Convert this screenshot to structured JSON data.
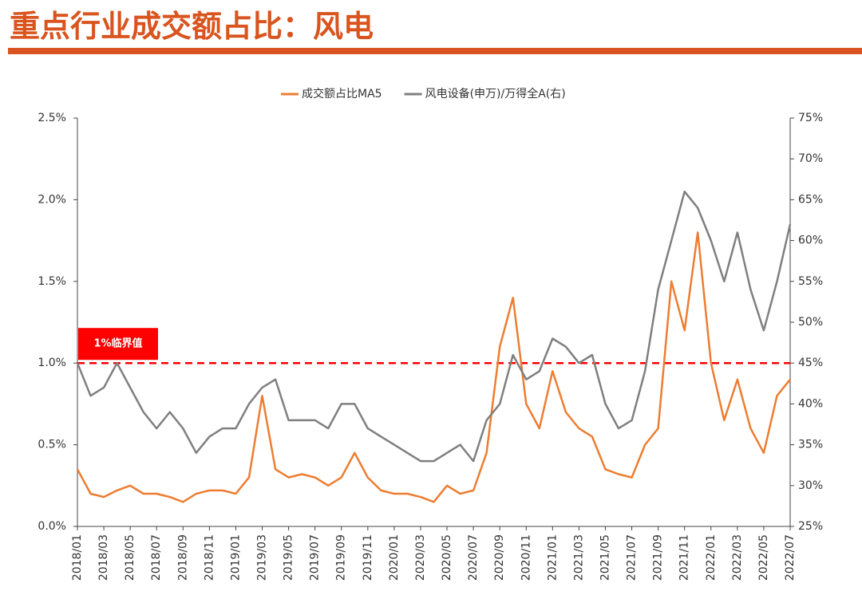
{
  "chart_data": {
    "type": "line",
    "title": "重点行业成交额占比：风电",
    "categories": [
      "2018/01",
      null,
      "2018/03",
      null,
      "2018/05",
      null,
      "2018/07",
      null,
      "2018/09",
      null,
      "2018/11",
      null,
      "2019/01",
      null,
      "2019/03",
      null,
      "2019/05",
      null,
      "2019/07",
      null,
      "2019/09",
      null,
      "2019/11",
      null,
      "2020/01",
      null,
      "2020/03",
      null,
      "2020/05",
      null,
      "2020/07",
      null,
      "2020/09",
      null,
      "2020/11",
      null,
      "2021/01",
      null,
      "2021/03",
      null,
      "2021/05",
      null,
      "2021/07",
      null,
      "2021/09",
      null,
      "2021/11",
      null,
      "2022/01",
      null,
      "2022/03",
      null,
      "2022/05",
      null,
      "2022/07"
    ],
    "series": [
      {
        "name": "成交额占比MA5",
        "color": "#ed7d31",
        "values": [
          0.35,
          0.2,
          0.18,
          0.22,
          0.25,
          0.2,
          0.2,
          0.18,
          0.15,
          0.2,
          0.22,
          0.22,
          0.2,
          0.3,
          0.8,
          0.35,
          0.3,
          0.32,
          0.3,
          0.25,
          0.3,
          0.45,
          0.3,
          0.22,
          0.2,
          0.2,
          0.18,
          0.15,
          0.25,
          0.2,
          0.22,
          0.45,
          1.1,
          1.4,
          0.75,
          0.6,
          0.95,
          0.7,
          0.6,
          0.55,
          0.35,
          0.32,
          0.3,
          0.5,
          0.6,
          1.5,
          1.2,
          1.8,
          1.0,
          0.65,
          0.9,
          0.6,
          0.45,
          0.8,
          0.9
        ]
      },
      {
        "name": "风电设备(申万)/万得全A(右)",
        "color": "#7f7f7f",
        "axis": "y2",
        "values": [
          45,
          41,
          42,
          45,
          42,
          39,
          37,
          39,
          37,
          34,
          36,
          37,
          37,
          40,
          42,
          43,
          38,
          38,
          38,
          37,
          40,
          40,
          37,
          36,
          35,
          34,
          33,
          33,
          34,
          35,
          33,
          38,
          40,
          46,
          43,
          44,
          48,
          47,
          45,
          46,
          40,
          37,
          38,
          44,
          54,
          60,
          66,
          64,
          60,
          55,
          61,
          54,
          49,
          55,
          62
        ]
      }
    ],
    "ylim": [
      0,
      2.5
    ],
    "yticks": [
      {
        "value": 0,
        "label": "0.0%"
      },
      {
        "value": 0.5,
        "label": "0.5%"
      },
      {
        "value": 1,
        "label": "1.0%"
      },
      {
        "value": 1.5,
        "label": "1.5%"
      },
      {
        "value": 2,
        "label": "2.0%"
      },
      {
        "value": 2.5,
        "label": "2.5%"
      }
    ],
    "y2lim": [
      25,
      75
    ],
    "y2ticks": [
      {
        "value": 25,
        "label": "25%"
      },
      {
        "value": 30,
        "label": "30%"
      },
      {
        "value": 35,
        "label": "35%"
      },
      {
        "value": 40,
        "label": "40%"
      },
      {
        "value": 45,
        "label": "45%"
      },
      {
        "value": 50,
        "label": "50%"
      },
      {
        "value": 55,
        "label": "55%"
      },
      {
        "value": 60,
        "label": "60%"
      },
      {
        "value": 65,
        "label": "65%"
      },
      {
        "value": 70,
        "label": "70%"
      },
      {
        "value": 75,
        "label": "75%"
      }
    ],
    "reference_line": {
      "value": 1,
      "label": "1%临界值",
      "color": "#ff0000"
    },
    "legend": "top"
  }
}
